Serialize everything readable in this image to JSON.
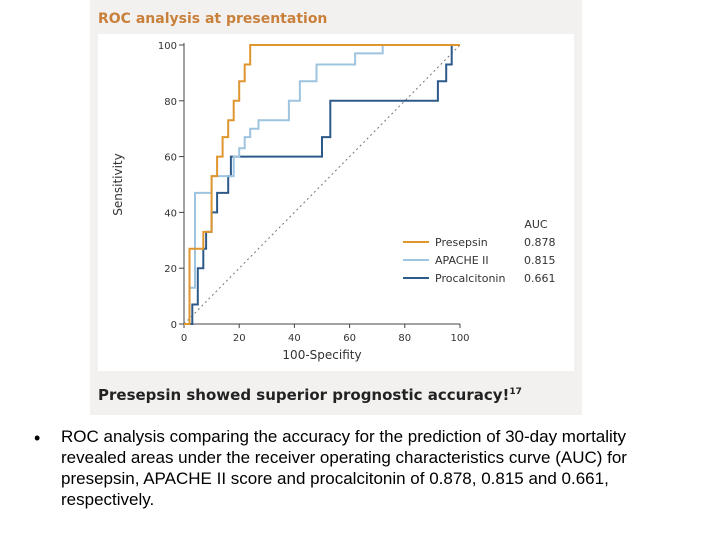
{
  "figure": {
    "title": "ROC analysis at presentation",
    "caption": "Presepsin showed superior prognostic accuracy!",
    "caption_sup": "17"
  },
  "bullet": {
    "symbol": "•",
    "text": "ROC analysis comparing the accuracy for the prediction of 30-day mortality revealed areas under the receiver operating  characteristics curve (AUC) for presepsin, APACHE II score and procalcitonin of 0.878, 0.815 and 0.661, respectively."
  },
  "chart_data": {
    "type": "line",
    "title": "ROC analysis at presentation",
    "xlabel": "100-Specifity",
    "ylabel": "Sensitivity",
    "xlim": [
      0,
      100
    ],
    "ylim": [
      0,
      100
    ],
    "xticks": [
      "0",
      "20",
      "40",
      "60",
      "80",
      "100"
    ],
    "yticks": [
      "0",
      "20",
      "40",
      "60",
      "80",
      "100"
    ],
    "grid": false,
    "legend": {
      "header": "AUC",
      "placement": "bottom-right"
    },
    "reference_line": {
      "style": "dotted",
      "x": [
        0,
        100
      ],
      "y": [
        0,
        100
      ]
    },
    "series": [
      {
        "name": "Presepsin",
        "auc": "0.878",
        "color": "#e0962e",
        "x": [
          0,
          2,
          2,
          7,
          7,
          10,
          10,
          12,
          12,
          14,
          14,
          16,
          16,
          18,
          18,
          20,
          20,
          22,
          22,
          24,
          24,
          30,
          30,
          98,
          100
        ],
        "y": [
          0,
          0,
          27,
          27,
          33,
          33,
          53,
          53,
          60,
          60,
          67,
          67,
          73,
          73,
          80,
          80,
          87,
          87,
          93,
          93,
          100,
          100,
          100,
          100,
          100
        ]
      },
      {
        "name": "APACHE II",
        "auc": "0.815",
        "color": "#9ec4df",
        "x": [
          0,
          2,
          2,
          4,
          4,
          10,
          10,
          12,
          12,
          14,
          14,
          16,
          16,
          18,
          18,
          20,
          20,
          22,
          22,
          24,
          24,
          27,
          27,
          32,
          32,
          38,
          38,
          42,
          42,
          48,
          48,
          54,
          54,
          62,
          62,
          72,
          72,
          100
        ],
        "y": [
          0,
          0,
          13,
          13,
          47,
          47,
          53,
          53,
          53,
          53,
          53,
          53,
          53,
          53,
          60,
          60,
          63,
          63,
          67,
          67,
          70,
          70,
          73,
          73,
          73,
          73,
          80,
          80,
          87,
          87,
          93,
          93,
          93,
          93,
          97,
          97,
          100,
          100
        ]
      },
      {
        "name": "Procalcitonin",
        "auc": "0.661",
        "color": "#2e5a8a",
        "x": [
          0,
          3,
          3,
          5,
          5,
          7,
          7,
          8,
          8,
          10,
          10,
          12,
          12,
          16,
          16,
          17,
          17,
          50,
          50,
          53,
          53,
          62,
          62,
          92,
          92,
          95,
          95,
          97,
          97,
          100
        ],
        "y": [
          0,
          0,
          7,
          7,
          20,
          20,
          27,
          27,
          33,
          33,
          40,
          40,
          47,
          47,
          53,
          53,
          60,
          60,
          67,
          67,
          80,
          80,
          80,
          80,
          87,
          87,
          93,
          93,
          100,
          100
        ]
      }
    ]
  }
}
